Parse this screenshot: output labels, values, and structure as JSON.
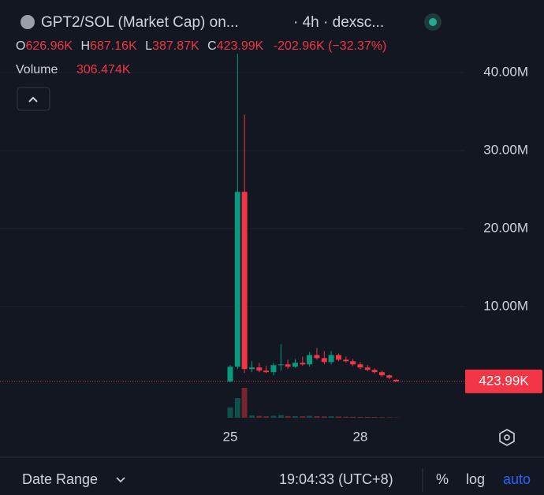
{
  "header": {
    "symbol": "GPT2/SOL (Market Cap) on...",
    "interval": "· 4h · dexsc...",
    "o_key": "O",
    "o_value": "626.96K",
    "h_key": "H",
    "h_value": "687.16K",
    "l_key": "L",
    "l_value": "387.87K",
    "c_key": "C",
    "c_value": "423.99K",
    "change": "-202.96K (−32.37%)",
    "volume_key": "Volume",
    "volume_value": "306.474K"
  },
  "footer": {
    "date_range": "Date Range",
    "time": "19:04:33 (UTC+8)",
    "percent": "%",
    "log": "log",
    "auto": "auto"
  },
  "chart_data": {
    "type": "candlestick",
    "x": [
      25,
      25.17,
      25.33,
      25.5,
      25.67,
      25.83,
      26,
      26.17,
      26.33,
      26.5,
      26.67,
      26.83,
      27,
      27.17,
      27.33,
      27.5,
      27.67,
      27.83,
      28,
      28.17,
      28.33,
      28.5,
      28.67,
      28.83
    ],
    "open": [
      0.4,
      2.3,
      24.7,
      2.0,
      2.2,
      1.8,
      1.6,
      2.5,
      2.6,
      2.3,
      2.8,
      2.6,
      3.8,
      3.4,
      2.9,
      3.8,
      3.2,
      3.0,
      2.6,
      2.2,
      1.9,
      1.6,
      1.2,
      0.62696
    ],
    "high": [
      2.5,
      42.4,
      34.6,
      3.0,
      2.8,
      2.4,
      2.8,
      5.2,
      3.2,
      3.3,
      3.6,
      4.2,
      4.7,
      4.3,
      4.3,
      4.0,
      3.6,
      3.3,
      2.9,
      2.5,
      2.1,
      1.8,
      1.3,
      0.68716
    ],
    "low": [
      0.3,
      2.0,
      1.5,
      1.6,
      1.6,
      1.5,
      1.2,
      1.8,
      2.0,
      2.2,
      2.4,
      2.3,
      3.2,
      2.6,
      2.6,
      3.0,
      2.8,
      2.4,
      2.0,
      1.7,
      1.4,
      1.0,
      0.7,
      0.38787
    ],
    "close": [
      2.3,
      24.7,
      2.0,
      2.2,
      1.8,
      1.6,
      2.5,
      2.6,
      2.3,
      2.8,
      2.6,
      3.8,
      3.4,
      2.9,
      3.8,
      3.2,
      3.0,
      2.6,
      2.2,
      1.9,
      1.6,
      1.2,
      0.9,
      0.42399
    ],
    "volume": [
      15600000,
      30000000,
      45600000,
      3500000,
      2800000,
      2200000,
      3000000,
      4000000,
      2500000,
      2400000,
      2200000,
      2800000,
      2500000,
      2100000,
      2300000,
      1900000,
      1600000,
      1400000,
      1300000,
      1200000,
      1100000,
      900000,
      700000,
      306474
    ],
    "volume_ylim": [
      0,
      60000000
    ],
    "up_color": "#089981",
    "down_color": "#f23645",
    "xlim": [
      19.69,
      30.42
    ],
    "xticks": [
      25,
      28
    ],
    "ylim": [
      -5.25,
      45.25
    ],
    "yticks": [
      {
        "value": 10,
        "label": "10.00M"
      },
      {
        "value": 20,
        "label": "20.00M"
      },
      {
        "value": 30,
        "label": "30.00M"
      },
      {
        "value": 40,
        "label": "40.00M"
      }
    ],
    "grid": true,
    "last_price_label": "423.99K"
  }
}
